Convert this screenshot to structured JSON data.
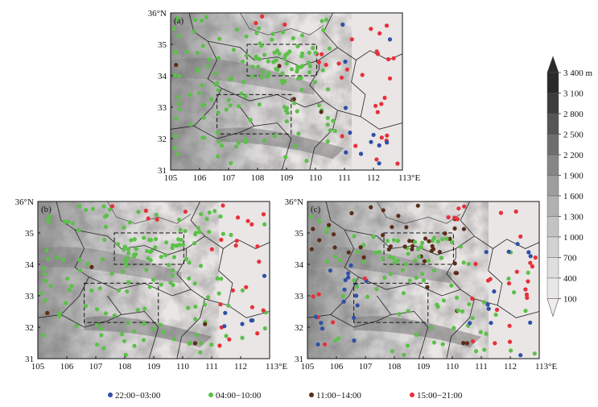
{
  "panels": [
    {
      "id": "a",
      "label": "(a)",
      "xticks": [
        "105",
        "106",
        "107",
        "108",
        "109",
        "110",
        "111",
        "112",
        "113°E"
      ],
      "yticks": [
        "36°N",
        "35",
        "34",
        "33",
        "32",
        "31"
      ]
    },
    {
      "id": "b",
      "label": "(b)",
      "xticks": [
        "105",
        "106",
        "107",
        "108",
        "109",
        "110",
        "111",
        "112",
        "113°E"
      ],
      "yticks": [
        "36°N",
        "35",
        "34",
        "33",
        "32",
        "31"
      ]
    },
    {
      "id": "c",
      "label": "(c)",
      "xticks": [
        "105",
        "106",
        "107",
        "108",
        "109",
        "110",
        "111",
        "112",
        "113°E"
      ],
      "yticks": [
        "36°N",
        "35",
        "34",
        "33",
        "32",
        "31"
      ]
    }
  ],
  "colorbar": {
    "labels": [
      "3 400  m",
      "3 100",
      "2 800",
      "2 500",
      "2 200",
      "1 900",
      "1 600",
      "1 300",
      "1 000",
      "700",
      "400",
      "100"
    ],
    "colors": [
      "#2a2a2a",
      "#3c3c3c",
      "#555555",
      "#6e6e6e",
      "#868686",
      "#9d9d9d",
      "#b1b1b1",
      "#c3c3c3",
      "#d2d2d2",
      "#dedede",
      "#e8e6e6",
      "#efeceb"
    ]
  },
  "legend": [
    {
      "label": "22:00−03:00",
      "color": "#2f4fa8"
    },
    {
      "label": "04:00−10:00",
      "color": "#5cc04a"
    },
    {
      "label": "11:00−14:00",
      "color": "#5a2d1a"
    },
    {
      "label": "15:00−21:00",
      "color": "#e8303a"
    }
  ],
  "colors": {
    "frame": "#111111",
    "box": "#111111",
    "border": "#222222"
  }
}
